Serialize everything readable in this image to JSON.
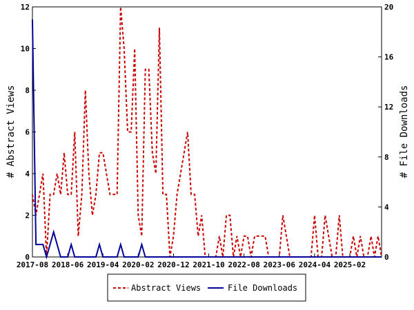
{
  "chart_data": {
    "type": "line",
    "ylabel_left": "# Abstract Views",
    "ylabel_right": "# File Downloads",
    "ylim_left": [
      0,
      12
    ],
    "ylim_right": [
      0,
      20
    ],
    "x_range": [
      "2017-08",
      "2025-11"
    ],
    "x_tick_labels": [
      "2017-08",
      "2018-06",
      "2019-04",
      "2020-02",
      "2020-12",
      "2021-10",
      "2022-08",
      "2023-06",
      "2024-04",
      "2025-02"
    ],
    "y_left_ticks": [
      0,
      2,
      4,
      6,
      8,
      10,
      12
    ],
    "y_right_ticks": [
      0,
      4,
      8,
      12,
      16,
      20
    ],
    "grid": false,
    "legend_position": "bottom",
    "series": [
      {
        "name": "Abstract Views",
        "axis": "left",
        "color": "#cc0000",
        "style": "dashed",
        "months": [
          "2017-08",
          "2017-09",
          "2017-10",
          "2017-11",
          "2017-12",
          "2018-01",
          "2018-02",
          "2018-03",
          "2018-04",
          "2018-05",
          "2018-06",
          "2018-07",
          "2018-08",
          "2018-09",
          "2018-10",
          "2018-11",
          "2018-12",
          "2019-01",
          "2019-02",
          "2019-03",
          "2019-04",
          "2019-05",
          "2019-06",
          "2019-07",
          "2019-08",
          "2019-09",
          "2019-10",
          "2019-11",
          "2019-12",
          "2020-01",
          "2020-02",
          "2020-03",
          "2020-04",
          "2020-05",
          "2020-06",
          "2020-07",
          "2020-08",
          "2020-09",
          "2020-10",
          "2020-11",
          "2020-12",
          "2021-01",
          "2021-02",
          "2021-03",
          "2021-04",
          "2021-05",
          "2021-06",
          "2021-07",
          "2021-08",
          "2021-09",
          "2021-10",
          "2021-11",
          "2021-12",
          "2022-01",
          "2022-02",
          "2022-03",
          "2022-04",
          "2022-05",
          "2022-06",
          "2022-07",
          "2022-08",
          "2022-09",
          "2022-10",
          "2022-11",
          "2022-12",
          "2023-01",
          "2023-02",
          "2023-03",
          "2023-04",
          "2023-05",
          "2023-06",
          "2023-07",
          "2023-08",
          "2023-09",
          "2023-10",
          "2023-11",
          "2023-12",
          "2024-01",
          "2024-02",
          "2024-03",
          "2024-04",
          "2024-05",
          "2024-06",
          "2024-07",
          "2024-08",
          "2024-09",
          "2024-10",
          "2024-11",
          "2024-12",
          "2025-01",
          "2025-02",
          "2025-03",
          "2025-04",
          "2025-05",
          "2025-06",
          "2025-07",
          "2025-08",
          "2025-09",
          "2025-10",
          "2025-11"
        ],
        "values": [
          3,
          2,
          3,
          4,
          0,
          3,
          3,
          4,
          3,
          5,
          3,
          3,
          6,
          1,
          3,
          8,
          4,
          2,
          3,
          5,
          5,
          4,
          3,
          3,
          3,
          12,
          10,
          6,
          6,
          10,
          2,
          1,
          9,
          9,
          5,
          4,
          11,
          3,
          3,
          0,
          1,
          3,
          4,
          5,
          6,
          3,
          3,
          1,
          2,
          0,
          0,
          0,
          0,
          1,
          0,
          2,
          2,
          0,
          1,
          0,
          1,
          1,
          0,
          1,
          1,
          1,
          1,
          0,
          0,
          0,
          0,
          2,
          1,
          0,
          0,
          0,
          0,
          0,
          0,
          0,
          2,
          0,
          0,
          2,
          1,
          0,
          0,
          2,
          0,
          0,
          0,
          1,
          0,
          1,
          0,
          0,
          1,
          0,
          1,
          0
        ],
        "markers": false
      },
      {
        "name": "File Downloads",
        "axis": "right",
        "color": "#000099",
        "style": "solid",
        "months": [
          "2017-08",
          "2017-09",
          "2017-10",
          "2017-11",
          "2017-12",
          "2018-01",
          "2018-02",
          "2018-03",
          "2018-04",
          "2018-05",
          "2018-06",
          "2018-07",
          "2018-08",
          "2018-09",
          "2018-10",
          "2018-11",
          "2018-12",
          "2019-01",
          "2019-02",
          "2019-03",
          "2019-04",
          "2019-05",
          "2019-06",
          "2019-07",
          "2019-08",
          "2019-09",
          "2019-10",
          "2019-11",
          "2019-12",
          "2020-01",
          "2020-02",
          "2020-03",
          "2020-04",
          "2020-05",
          "2020-06",
          "2020-07",
          "2020-08",
          "2020-09",
          "2020-10",
          "2020-11",
          "2020-12",
          "2021-01",
          "2021-02",
          "2021-03",
          "2021-04",
          "2021-05",
          "2021-06",
          "2021-07",
          "2021-08",
          "2021-09",
          "2021-10",
          "2021-11",
          "2021-12",
          "2022-01",
          "2022-02",
          "2022-03",
          "2022-04",
          "2022-05",
          "2022-06",
          "2022-07",
          "2022-08",
          "2022-09",
          "2022-10",
          "2022-11",
          "2022-12",
          "2023-01",
          "2023-02",
          "2023-03",
          "2023-04",
          "2023-05",
          "2023-06",
          "2023-07",
          "2023-08",
          "2023-09",
          "2023-10",
          "2023-11",
          "2023-12",
          "2024-01",
          "2024-02",
          "2024-03",
          "2024-04",
          "2024-05",
          "2024-06",
          "2024-07",
          "2024-08",
          "2024-09",
          "2024-10",
          "2024-11",
          "2024-12",
          "2025-01",
          "2025-02",
          "2025-03",
          "2025-04",
          "2025-05",
          "2025-06",
          "2025-07",
          "2025-08",
          "2025-09",
          "2025-10",
          "2025-11"
        ],
        "values": [
          19,
          1,
          1,
          1,
          0,
          1,
          2,
          1,
          0,
          0,
          0,
          1,
          0,
          0,
          0,
          0,
          0,
          0,
          0,
          1,
          0,
          0,
          0,
          0,
          0,
          1,
          0,
          0,
          0,
          0,
          0,
          1,
          0,
          0,
          0,
          0,
          0,
          0,
          0,
          0,
          0,
          0,
          0,
          0,
          0,
          0,
          0,
          0,
          0,
          0,
          0,
          0,
          0,
          0,
          0,
          0,
          0,
          0,
          0,
          0,
          0,
          0,
          0,
          0,
          0,
          0,
          0,
          0,
          0,
          0,
          0,
          0,
          0,
          0,
          0,
          0,
          0,
          0,
          0,
          0,
          0,
          0,
          0,
          0,
          0,
          0,
          0,
          0,
          0,
          0,
          0,
          0,
          0,
          0,
          0,
          0,
          0,
          0,
          0,
          0
        ],
        "markers": false
      }
    ]
  }
}
